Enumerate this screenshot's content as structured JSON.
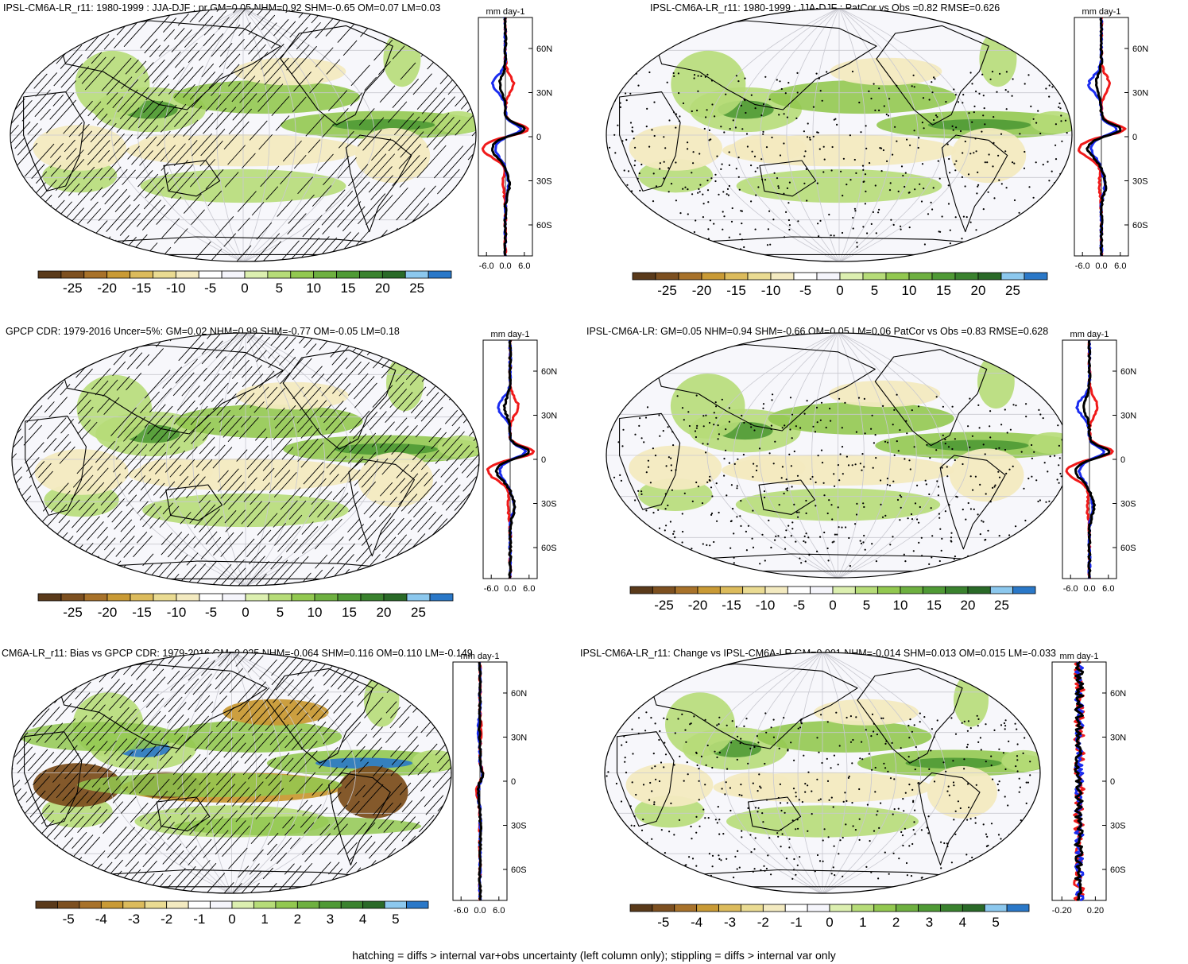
{
  "panels": [
    {
      "id": "p1",
      "title": "IPSL-CM6A-LR_r11: 1980-1999 : JJA-DJF : pr GM=0.05 NHM=0.92 SHM=-0.65 OM=0.07 LM=0.03",
      "zm_unit": "mm day-1",
      "zm_ticks": [
        "-6.0",
        "0.0",
        "6.0"
      ],
      "lat_ticks": [
        "60N",
        "30N",
        "0",
        "30S",
        "60S"
      ],
      "colorbar_labels": [
        "-25",
        "-20",
        "-15",
        "-10",
        "-5",
        "0",
        "5",
        "10",
        "15",
        "20",
        "25"
      ],
      "overlay": "hatching"
    },
    {
      "id": "p2",
      "title": "IPSL-CM6A-LR_r11: 1980-1999 : JJA-DJF : PatCor vs Obs =0.82 RMSE=0.626",
      "zm_unit": "mm day-1",
      "zm_ticks": [
        "-6.0",
        "0.0",
        "6.0"
      ],
      "lat_ticks": [
        "60N",
        "30N",
        "0",
        "30S",
        "60S"
      ],
      "colorbar_labels": [
        "-25",
        "-20",
        "-15",
        "-10",
        "-5",
        "0",
        "5",
        "10",
        "15",
        "20",
        "25"
      ],
      "overlay": "stippling"
    },
    {
      "id": "p3",
      "title": "GPCP CDR: 1979-2016 Uncer=5%: GM=0.02 NHM=0.99 SHM=-0.77 OM=-0.05 LM=0.18",
      "zm_unit": "mm day-1",
      "zm_ticks": [
        "-6.0",
        "0.0",
        "6.0"
      ],
      "lat_ticks": [
        "60N",
        "30N",
        "0",
        "30S",
        "60S"
      ],
      "colorbar_labels": [
        "-25",
        "-20",
        "-15",
        "-10",
        "-5",
        "0",
        "5",
        "10",
        "15",
        "20",
        "25"
      ],
      "overlay": "hatching"
    },
    {
      "id": "p4",
      "title": "IPSL-CM6A-LR: GM=0.05 NHM=0.94 SHM=-0.66 OM=0.05 LM=0.06 PatCor vs Obs =0.83 RMSE=0.628",
      "zm_unit": "mm day-1",
      "zm_ticks": [
        "-6.0",
        "0.0",
        "6.0"
      ],
      "lat_ticks": [
        "60N",
        "30N",
        "0",
        "30S",
        "60S"
      ],
      "colorbar_labels": [
        "-25",
        "-20",
        "-15",
        "-10",
        "-5",
        "0",
        "5",
        "10",
        "15",
        "20",
        "25"
      ],
      "overlay": "stippling"
    },
    {
      "id": "p5",
      "title": "CM6A-LR_r11: Bias vs GPCP CDR: 1979-2016 GM=0.035 NHM=-0.064 SHM=0.116 OM=0.110 LM=-0.149",
      "zm_unit": "mm day-1",
      "zm_ticks": [
        "-6.0",
        "0.0",
        "6.0"
      ],
      "lat_ticks": [
        "60N",
        "30N",
        "0",
        "30S",
        "60S"
      ],
      "colorbar_labels": [
        "-5",
        "-4",
        "-3",
        "-2",
        "-1",
        "0",
        "1",
        "2",
        "3",
        "4",
        "5"
      ],
      "overlay": "hatching"
    },
    {
      "id": "p6",
      "title": "IPSL-CM6A-LR_r11: Change vs IPSL-CM6A-LR GM=0.001 NHM=-0.014 SHM=0.013 OM=0.015 LM=-0.033",
      "zm_unit": "mm day-1",
      "zm_ticks": [
        "-0.20",
        "0.20"
      ],
      "lat_ticks": [
        "60N",
        "30N",
        "0",
        "30S",
        "60S"
      ],
      "colorbar_labels": [
        "-5",
        "-4",
        "-3",
        "-2",
        "-1",
        "0",
        "1",
        "2",
        "3",
        "4",
        "5"
      ],
      "overlay": "stippling"
    }
  ],
  "colorbar_colors": [
    "#5a3a1a",
    "#7d5020",
    "#a8722a",
    "#c99a35",
    "#dcbb5c",
    "#eadb92",
    "#f3eac0",
    "#ffffff",
    "#f5f5fb",
    "#dcefb0",
    "#b6dc78",
    "#92c850",
    "#6eb040",
    "#4f9a35",
    "#3a822e",
    "#2a6a28",
    "#8cc8ee",
    "#2a78c8"
  ],
  "colors": {
    "zm_model": "#000000",
    "zm_obs": "#1a2cf0",
    "zm_other": "#f01a1a",
    "land_outline": "#000000",
    "map_background": "#f7f7fb"
  },
  "footer": "hatching = diffs > internal var+obs uncertainty (left column only); stippling = diffs > internal var only"
}
